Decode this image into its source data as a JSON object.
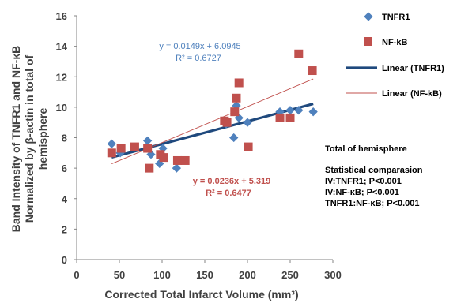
{
  "chart_data": {
    "type": "scatter",
    "xlabel": "Corrected Total Infarct Volume (mm³)",
    "ylabel_lines": [
      "Band Intensity of TNFR1 and NF-κB",
      "Normalized by β-actin in total of",
      "hemisphere"
    ],
    "xlim": [
      0,
      300
    ],
    "ylim": [
      0,
      16
    ],
    "x_ticks": [
      "0",
      "50",
      "100",
      "150",
      "200",
      "250",
      "300"
    ],
    "y_ticks": [
      "0",
      "2",
      "4",
      "6",
      "8",
      "10",
      "12",
      "14",
      "16"
    ],
    "grid": false,
    "legend_position": "right",
    "series": [
      {
        "name": "TNFR1",
        "marker": "diamond",
        "color": "#4f81bd",
        "points": [
          [
            41,
            7.6
          ],
          [
            51,
            7.0
          ],
          [
            83,
            7.8
          ],
          [
            87,
            6.9
          ],
          [
            97,
            6.3
          ],
          [
            101,
            7.3
          ],
          [
            117,
            6.0
          ],
          [
            175,
            8.9
          ],
          [
            184,
            8.0
          ],
          [
            187,
            10.1
          ],
          [
            190,
            9.3
          ],
          [
            200,
            9.0
          ],
          [
            238,
            9.7
          ],
          [
            250,
            9.8
          ],
          [
            260,
            9.8
          ],
          [
            277,
            9.7
          ]
        ]
      },
      {
        "name": "NF-kB",
        "marker": "square",
        "color": "#c0504d",
        "points": [
          [
            41,
            7.0
          ],
          [
            52,
            7.3
          ],
          [
            68,
            7.4
          ],
          [
            83,
            7.3
          ],
          [
            85,
            6.0
          ],
          [
            98,
            6.9
          ],
          [
            102,
            6.7
          ],
          [
            118,
            6.5
          ],
          [
            127,
            6.5
          ],
          [
            173,
            9.1
          ],
          [
            176,
            9.0
          ],
          [
            185,
            9.7
          ],
          [
            187,
            10.6
          ],
          [
            190,
            11.6
          ],
          [
            201,
            7.4
          ],
          [
            238,
            9.3
          ],
          [
            250,
            9.3
          ],
          [
            260,
            13.5
          ],
          [
            276,
            12.4
          ]
        ]
      }
    ],
    "trendlines": [
      {
        "name": "Linear (TNFR1)",
        "slope": 0.0149,
        "intercept": 6.0945,
        "x_range": [
          41,
          277
        ],
        "color": "#1f497d",
        "width": 3.2
      },
      {
        "name": "Linear (NF-kB)",
        "slope": 0.0236,
        "intercept": 5.319,
        "x_range": [
          41,
          277
        ],
        "color": "#c0504d",
        "width": 0.9
      }
    ],
    "annotations": {
      "tnfr1_equation": "y = 0.0149x + 6.0945",
      "tnfr1_r2": "R² = 0.6727",
      "tnfr1_color": "#4f81bd",
      "nfkb_equation": "y = 0.0236x + 5.319",
      "nfkb_r2": "R² = 0.6477",
      "nfkb_color": "#c0504d"
    },
    "stats_note": {
      "title": "Total of hemisphere",
      "subtitle": "Statistical comparasion",
      "lines": [
        "IV:TNFR1; P<0.001",
        "IV:NF-κB;  P<0.001",
        "TNFR1:NF-κB; P<0.001"
      ]
    }
  }
}
